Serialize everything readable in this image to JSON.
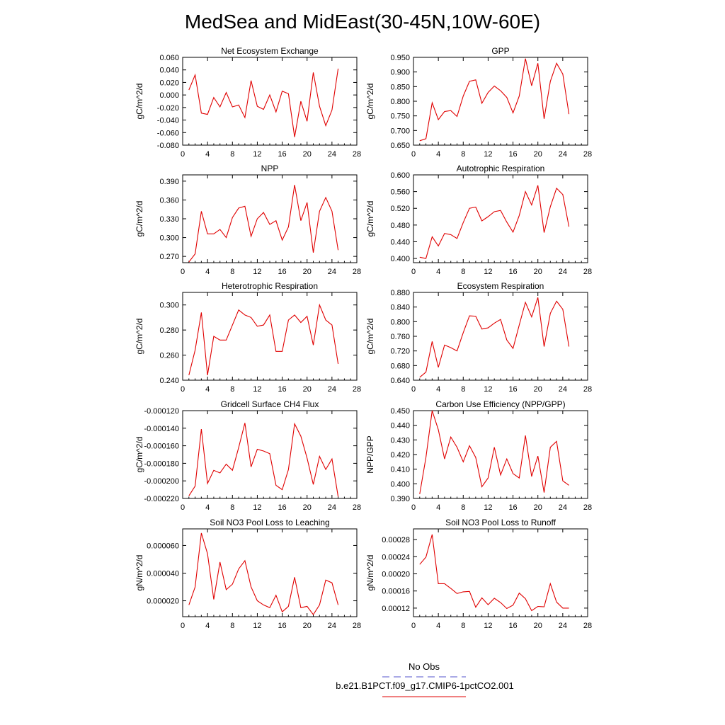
{
  "figure": {
    "title": "MedSea and MidEast(30-45N,10W-60E)",
    "legend": [
      {
        "label": "No Obs",
        "color": "#5555cc",
        "dash": true
      },
      {
        "label": "b.e21.B1PCT.f09_g17.CMIP6-1pctCO2.001",
        "color": "#e00000",
        "dash": false
      }
    ]
  },
  "chart_data": [
    {
      "type": "line",
      "title": "Net Ecosystem Exchange",
      "ylabel": "gC/m^2/d",
      "xlim": [
        0,
        28
      ],
      "xticks": [
        "0",
        "4",
        "8",
        "12",
        "16",
        "20",
        "24",
        "28"
      ],
      "ylim": [
        -0.08,
        0.06
      ],
      "yticks": [
        "-0.080",
        "-0.060",
        "-0.040",
        "-0.020",
        "0.000",
        "0.020",
        "0.040",
        "0.060"
      ],
      "x": [
        1,
        2,
        3,
        4,
        5,
        6,
        7,
        8,
        9,
        10,
        11,
        12,
        13,
        14,
        15,
        16,
        17,
        18,
        19,
        20,
        21,
        22,
        23,
        24,
        25
      ],
      "series": [
        {
          "color": "#e00000",
          "values": [
            0.008,
            0.032,
            -0.029,
            -0.031,
            -0.004,
            -0.019,
            0.004,
            -0.019,
            -0.016,
            -0.036,
            0.023,
            -0.018,
            -0.023,
            0.0,
            -0.027,
            0.006,
            0.002,
            -0.067,
            -0.01,
            -0.042,
            0.036,
            -0.018,
            -0.049,
            -0.024,
            0.042
          ]
        }
      ]
    },
    {
      "type": "line",
      "title": "GPP",
      "ylabel": "gC/m^2/d",
      "xlim": [
        0,
        28
      ],
      "xticks": [
        "0",
        "4",
        "8",
        "12",
        "16",
        "20",
        "24",
        "28"
      ],
      "ylim": [
        0.65,
        0.95
      ],
      "yticks": [
        "0.650",
        "0.700",
        "0.750",
        "0.800",
        "0.850",
        "0.900",
        "0.950"
      ],
      "x": [
        1,
        2,
        3,
        4,
        5,
        6,
        7,
        8,
        9,
        10,
        11,
        12,
        13,
        14,
        15,
        16,
        17,
        18,
        19,
        20,
        21,
        22,
        23,
        24,
        25
      ],
      "series": [
        {
          "color": "#e00000",
          "values": [
            0.665,
            0.672,
            0.795,
            0.737,
            0.765,
            0.768,
            0.748,
            0.818,
            0.868,
            0.873,
            0.793,
            0.83,
            0.852,
            0.836,
            0.813,
            0.76,
            0.818,
            0.946,
            0.853,
            0.93,
            0.74,
            0.868,
            0.93,
            0.893,
            0.756
          ]
        }
      ]
    },
    {
      "type": "line",
      "title": "NPP",
      "ylabel": "gC/m^2/d",
      "xlim": [
        0,
        28
      ],
      "xticks": [
        "0",
        "4",
        "8",
        "12",
        "16",
        "20",
        "24",
        "28"
      ],
      "ylim": [
        0.26,
        0.4
      ],
      "yticks": [
        "0.270",
        "0.300",
        "0.330",
        "0.360",
        "0.390"
      ],
      "x": [
        1,
        2,
        3,
        4,
        5,
        6,
        7,
        8,
        9,
        10,
        11,
        12,
        13,
        14,
        15,
        16,
        17,
        18,
        19,
        20,
        21,
        22,
        23,
        24,
        25
      ],
      "series": [
        {
          "color": "#e00000",
          "values": [
            0.261,
            0.274,
            0.342,
            0.306,
            0.306,
            0.313,
            0.3,
            0.332,
            0.347,
            0.35,
            0.302,
            0.33,
            0.34,
            0.321,
            0.327,
            0.296,
            0.317,
            0.384,
            0.327,
            0.356,
            0.276,
            0.342,
            0.364,
            0.342,
            0.28
          ]
        }
      ]
    },
    {
      "type": "line",
      "title": "Autotrophic Respiration",
      "ylabel": "gC/m^2/d",
      "xlim": [
        0,
        28
      ],
      "xticks": [
        "0",
        "4",
        "8",
        "12",
        "16",
        "20",
        "24",
        "28"
      ],
      "ylim": [
        0.39,
        0.6
      ],
      "yticks": [
        "0.400",
        "0.440",
        "0.480",
        "0.520",
        "0.560",
        "0.600"
      ],
      "x": [
        1,
        2,
        3,
        4,
        5,
        6,
        7,
        8,
        9,
        10,
        11,
        12,
        13,
        14,
        15,
        16,
        17,
        18,
        19,
        20,
        21,
        22,
        23,
        24,
        25
      ],
      "series": [
        {
          "color": "#e00000",
          "values": [
            0.403,
            0.4,
            0.452,
            0.43,
            0.46,
            0.457,
            0.448,
            0.486,
            0.52,
            0.523,
            0.49,
            0.5,
            0.512,
            0.515,
            0.487,
            0.463,
            0.503,
            0.56,
            0.528,
            0.575,
            0.462,
            0.524,
            0.568,
            0.553,
            0.476
          ]
        }
      ]
    },
    {
      "type": "line",
      "title": "Heterotrophic Respiration",
      "ylabel": "gC/m^2/d",
      "xlim": [
        0,
        28
      ],
      "xticks": [
        "0",
        "4",
        "8",
        "12",
        "16",
        "20",
        "24",
        "28"
      ],
      "ylim": [
        0.24,
        0.31
      ],
      "yticks": [
        "0.240",
        "0.260",
        "0.280",
        "0.300"
      ],
      "x": [
        1,
        2,
        3,
        4,
        5,
        6,
        7,
        8,
        9,
        10,
        11,
        12,
        13,
        14,
        15,
        16,
        17,
        18,
        19,
        20,
        21,
        22,
        23,
        24,
        25
      ],
      "series": [
        {
          "color": "#e00000",
          "values": [
            0.244,
            0.264,
            0.294,
            0.244,
            0.275,
            0.272,
            0.272,
            0.284,
            0.296,
            0.292,
            0.29,
            0.283,
            0.284,
            0.292,
            0.263,
            0.263,
            0.288,
            0.292,
            0.286,
            0.291,
            0.268,
            0.3,
            0.288,
            0.284,
            0.253
          ]
        }
      ]
    },
    {
      "type": "line",
      "title": "Ecosystem Respiration",
      "ylabel": "gC/m^2/d",
      "xlim": [
        0,
        28
      ],
      "xticks": [
        "0",
        "4",
        "8",
        "12",
        "16",
        "20",
        "24",
        "28"
      ],
      "ylim": [
        0.64,
        0.88
      ],
      "yticks": [
        "0.640",
        "0.680",
        "0.720",
        "0.760",
        "0.800",
        "0.840",
        "0.880"
      ],
      "x": [
        1,
        2,
        3,
        4,
        5,
        6,
        7,
        8,
        9,
        10,
        11,
        12,
        13,
        14,
        15,
        16,
        17,
        18,
        19,
        20,
        21,
        22,
        23,
        24,
        25
      ],
      "series": [
        {
          "color": "#e00000",
          "values": [
            0.648,
            0.662,
            0.746,
            0.675,
            0.736,
            0.729,
            0.72,
            0.77,
            0.816,
            0.815,
            0.78,
            0.783,
            0.796,
            0.806,
            0.75,
            0.727,
            0.791,
            0.853,
            0.813,
            0.866,
            0.732,
            0.823,
            0.856,
            0.834,
            0.732
          ]
        }
      ]
    },
    {
      "type": "line",
      "title": "Gridcell Surface CH4 Flux",
      "ylabel": "gC/m^2/d",
      "xlim": [
        0,
        28
      ],
      "xticks": [
        "0",
        "4",
        "8",
        "12",
        "16",
        "20",
        "24",
        "28"
      ],
      "ylim": [
        -0.00022,
        -0.00012
      ],
      "yticks": [
        "-0.000220",
        "-0.000200",
        "-0.000180",
        "-0.000160",
        "-0.000140",
        "-0.000120"
      ],
      "x": [
        1,
        2,
        3,
        4,
        5,
        6,
        7,
        8,
        9,
        10,
        11,
        12,
        13,
        14,
        15,
        16,
        17,
        18,
        19,
        20,
        21,
        22,
        23,
        24,
        25
      ],
      "series": [
        {
          "color": "#e00000",
          "values": [
            -0.000217,
            -0.000206,
            -0.000141,
            -0.000203,
            -0.000188,
            -0.000191,
            -0.000181,
            -0.000188,
            -0.000162,
            -0.000134,
            -0.000184,
            -0.000164,
            -0.000166,
            -0.000169,
            -0.000205,
            -0.00021,
            -0.000187,
            -0.000135,
            -0.000149,
            -0.000174,
            -0.000204,
            -0.000172,
            -0.000187,
            -0.000175,
            -0.000218
          ]
        }
      ]
    },
    {
      "type": "line",
      "title": "Carbon Use Efficiency (NPP/GPP)",
      "ylabel": "NPP/GPP",
      "xlim": [
        0,
        28
      ],
      "xticks": [
        "0",
        "4",
        "8",
        "12",
        "16",
        "20",
        "24",
        "28"
      ],
      "ylim": [
        0.39,
        0.45
      ],
      "yticks": [
        "0.390",
        "0.400",
        "0.410",
        "0.420",
        "0.430",
        "0.440",
        "0.450"
      ],
      "x": [
        1,
        2,
        3,
        4,
        5,
        6,
        7,
        8,
        9,
        10,
        11,
        12,
        13,
        14,
        15,
        16,
        17,
        18,
        19,
        20,
        21,
        22,
        23,
        24,
        25
      ],
      "series": [
        {
          "color": "#e00000",
          "values": [
            0.393,
            0.418,
            0.45,
            0.437,
            0.417,
            0.432,
            0.425,
            0.415,
            0.426,
            0.418,
            0.398,
            0.404,
            0.425,
            0.406,
            0.417,
            0.407,
            0.404,
            0.433,
            0.405,
            0.419,
            0.394,
            0.425,
            0.429,
            0.402,
            0.399
          ]
        }
      ]
    },
    {
      "type": "line",
      "title": "Soil NO3 Pool Loss to Leaching",
      "ylabel": "gN/m^2/d",
      "xlim": [
        0,
        28
      ],
      "xticks": [
        "0",
        "4",
        "8",
        "12",
        "16",
        "20",
        "24",
        "28"
      ],
      "ylim": [
        8.5e-06,
        7.2e-05
      ],
      "yticks": [
        "0.000020",
        "0.000040",
        "0.000060"
      ],
      "x": [
        1,
        2,
        3,
        4,
        5,
        6,
        7,
        8,
        9,
        10,
        11,
        12,
        13,
        14,
        15,
        16,
        17,
        18,
        19,
        20,
        21,
        22,
        23,
        24,
        25
      ],
      "series": [
        {
          "color": "#e00000",
          "values": [
            1.7e-05,
            3e-05,
            6.9e-05,
            5.4e-05,
            2.1e-05,
            4.8e-05,
            2.8e-05,
            3.2e-05,
            4.3e-05,
            4.9e-05,
            3e-05,
            2e-05,
            1.7e-05,
            1.5e-05,
            2.4e-05,
            1.2e-05,
            1.6e-05,
            3.7e-05,
            1.5e-05,
            1.6e-05,
            1e-05,
            1.7e-05,
            3.5e-05,
            3.3e-05,
            1.7e-05
          ]
        }
      ]
    },
    {
      "type": "line",
      "title": "Soil NO3 Pool Loss to Runoff",
      "ylabel": "gN/m^2/d",
      "xlim": [
        0,
        28
      ],
      "xticks": [
        "0",
        "4",
        "8",
        "12",
        "16",
        "20",
        "24",
        "28"
      ],
      "ylim": [
        0.0001,
        0.000305
      ],
      "yticks": [
        "0.00012",
        "0.00016",
        "0.00020",
        "0.00024",
        "0.00028"
      ],
      "x": [
        1,
        2,
        3,
        4,
        5,
        6,
        7,
        8,
        9,
        10,
        11,
        12,
        13,
        14,
        15,
        16,
        17,
        18,
        19,
        20,
        21,
        22,
        23,
        24,
        25
      ],
      "series": [
        {
          "color": "#e00000",
          "values": [
            0.000222,
            0.000239,
            0.000292,
            0.000177,
            0.000177,
            0.000166,
            0.000154,
            0.000158,
            0.000159,
            0.000122,
            0.000144,
            0.000128,
            0.000143,
            0.000133,
            0.000119,
            0.000127,
            0.000155,
            0.000142,
            0.000114,
            0.000124,
            0.000123,
            0.000177,
            0.000134,
            0.00012,
            0.00012
          ]
        }
      ]
    }
  ]
}
